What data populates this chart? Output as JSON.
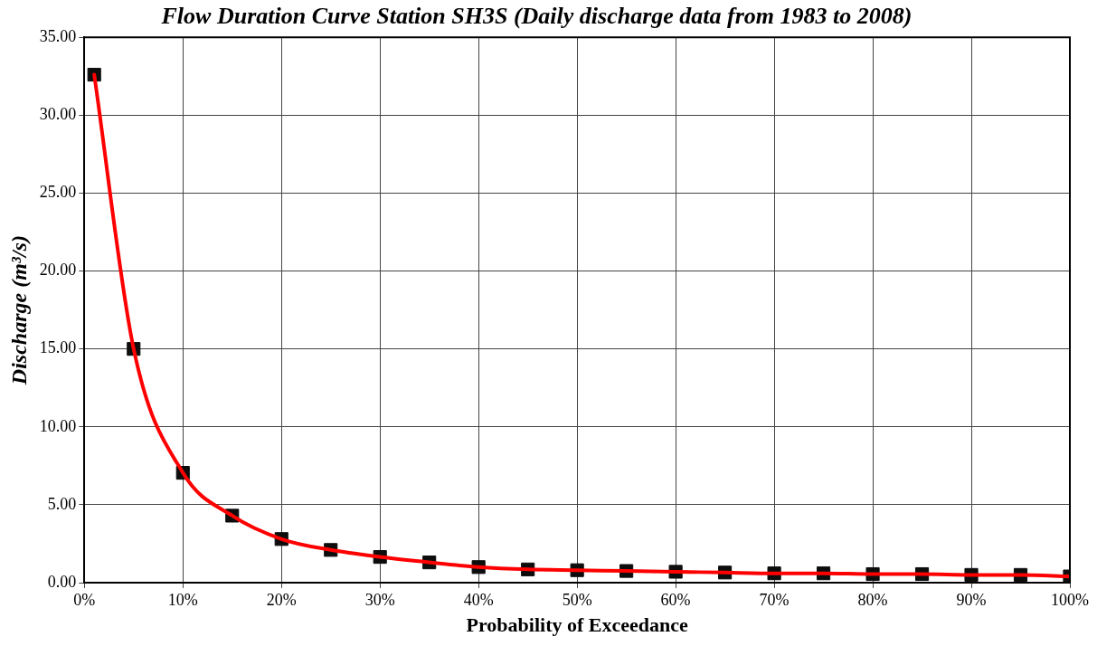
{
  "chart_data": {
    "type": "line",
    "title": "Flow Duration Curve Station SH3S (Daily discharge data from 1983 to 2008)",
    "xlabel": "Probability of Exceedance",
    "ylabel": "Discharge (m³/s)",
    "x": [
      1,
      5,
      10,
      15,
      20,
      25,
      30,
      35,
      40,
      45,
      50,
      55,
      60,
      65,
      70,
      75,
      80,
      85,
      90,
      95,
      100
    ],
    "series": [
      {
        "type": "line",
        "color": "#ff0000",
        "marker": "none",
        "values": [
          32.6,
          15.0,
          7.05,
          4.3,
          2.8,
          2.1,
          1.65,
          1.3,
          1.0,
          0.85,
          0.8,
          0.75,
          0.7,
          0.65,
          0.6,
          0.6,
          0.55,
          0.55,
          0.5,
          0.5,
          0.4
        ]
      },
      {
        "type": "scatter",
        "color": "#0d0d0d",
        "marker": "square",
        "values": [
          32.6,
          15.0,
          7.05,
          4.3,
          2.8,
          2.1,
          1.65,
          1.3,
          1.0,
          0.85,
          0.8,
          0.75,
          0.7,
          0.65,
          0.6,
          0.6,
          0.55,
          0.55,
          0.5,
          0.5,
          0.4
        ]
      }
    ],
    "xlim": [
      0,
      100
    ],
    "xticks": [
      {
        "value": 0,
        "label": "0%"
      },
      {
        "value": 10,
        "label": "10%"
      },
      {
        "value": 20,
        "label": "20%"
      },
      {
        "value": 30,
        "label": "30%"
      },
      {
        "value": 40,
        "label": "40%"
      },
      {
        "value": 50,
        "label": "50%"
      },
      {
        "value": 60,
        "label": "60%"
      },
      {
        "value": 70,
        "label": "70%"
      },
      {
        "value": 80,
        "label": "80%"
      },
      {
        "value": 90,
        "label": "90%"
      },
      {
        "value": 100,
        "label": "100%"
      }
    ],
    "ylim": [
      0,
      35
    ],
    "yticks": [
      {
        "value": 0,
        "label": "0.00"
      },
      {
        "value": 5,
        "label": "5.00"
      },
      {
        "value": 10,
        "label": "10.00"
      },
      {
        "value": 15,
        "label": "15.00"
      },
      {
        "value": 20,
        "label": "20.00"
      },
      {
        "value": 25,
        "label": "25.00"
      },
      {
        "value": 30,
        "label": "30.00"
      },
      {
        "value": 35,
        "label": "35.00"
      }
    ],
    "grid": true,
    "legend": false
  }
}
